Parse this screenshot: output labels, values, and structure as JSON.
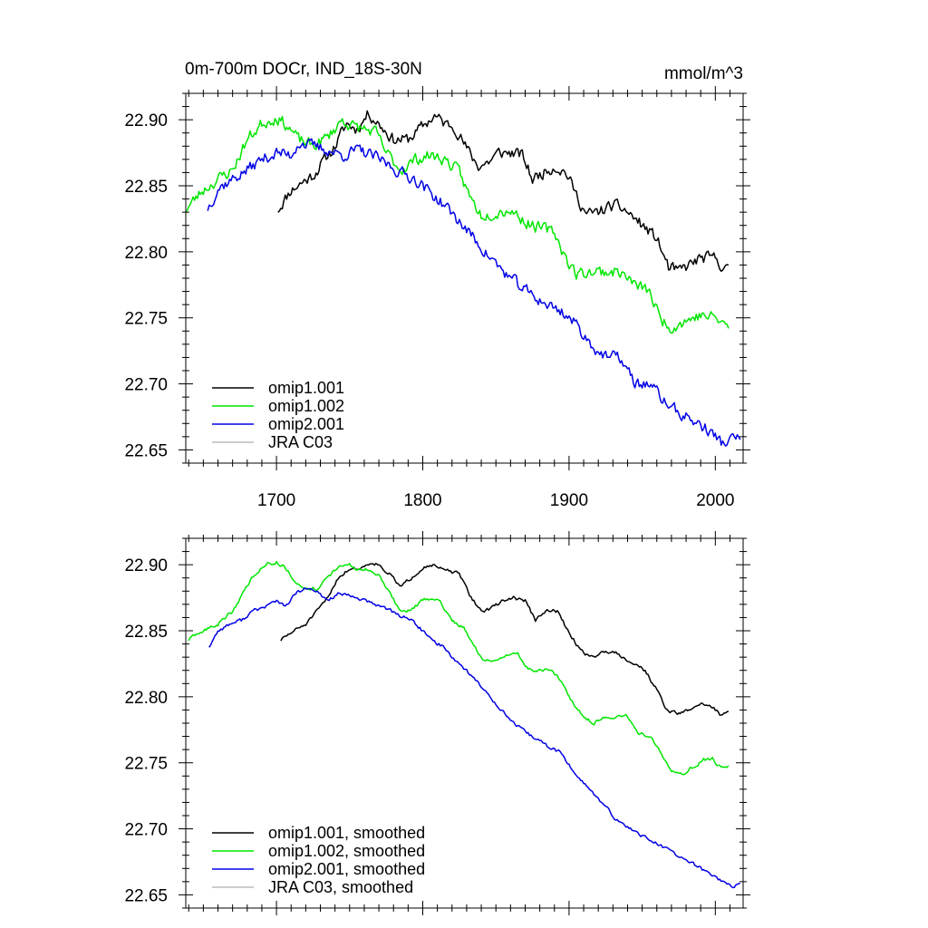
{
  "header": {
    "title": "0m-700m DOCr, IND_18S-30N",
    "units": "mmol/m^3"
  },
  "chart_data": [
    {
      "type": "line",
      "panel": "top",
      "title": "0m-700m DOCr, IND_18S-30N",
      "units_label": "mmol/m^3",
      "xlim": [
        1638,
        2019
      ],
      "ylim": [
        22.64,
        22.92
      ],
      "x_ticks": [
        1700,
        1800,
        1900,
        2000
      ],
      "x_tick_labels": [
        "1700",
        "1800",
        "1900",
        "2000"
      ],
      "y_ticks": [
        22.65,
        22.7,
        22.75,
        22.8,
        22.85,
        22.9
      ],
      "y_tick_labels": [
        "22.65",
        "22.70",
        "22.75",
        "22.80",
        "22.85",
        "22.90"
      ],
      "legend": {
        "position": "bottom-left",
        "entries": [
          "omip1.001",
          "omip1.002",
          "omip2.001",
          "JRA C03"
        ]
      },
      "series": [
        {
          "name": "omip1.001",
          "color": "#000000",
          "noise": 0.004,
          "seed": 11,
          "x": [
            1701,
            1710,
            1725,
            1740,
            1748,
            1755,
            1763,
            1770,
            1780,
            1790,
            1800,
            1808,
            1815,
            1822,
            1830,
            1838,
            1845,
            1852,
            1860,
            1868,
            1875,
            1882,
            1890,
            1898,
            1905,
            1912,
            1920,
            1930,
            1938,
            1945,
            1952,
            1960,
            1968,
            1975,
            1982,
            1990,
            2000,
            2009
          ],
          "values": [
            22.832,
            22.847,
            22.858,
            22.88,
            22.897,
            22.893,
            22.905,
            22.897,
            22.885,
            22.885,
            22.895,
            22.903,
            22.897,
            22.895,
            22.878,
            22.865,
            22.868,
            22.875,
            22.875,
            22.873,
            22.855,
            22.86,
            22.865,
            22.86,
            22.843,
            22.828,
            22.83,
            22.835,
            22.832,
            22.825,
            22.818,
            22.81,
            22.788,
            22.785,
            22.79,
            22.795,
            22.795,
            22.785
          ]
        },
        {
          "name": "omip1.002",
          "color": "#00e600",
          "noise": 0.004,
          "seed": 23,
          "x": [
            1638,
            1650,
            1660,
            1670,
            1680,
            1690,
            1700,
            1708,
            1715,
            1725,
            1735,
            1745,
            1752,
            1760,
            1768,
            1775,
            1785,
            1795,
            1805,
            1815,
            1825,
            1833,
            1840,
            1850,
            1860,
            1870,
            1880,
            1890,
            1898,
            1905,
            1915,
            1925,
            1935,
            1945,
            1955,
            1962,
            1970,
            1980,
            1990,
            2000,
            2009
          ],
          "values": [
            22.832,
            22.847,
            22.855,
            22.862,
            22.885,
            22.897,
            22.902,
            22.895,
            22.885,
            22.88,
            22.887,
            22.9,
            22.895,
            22.893,
            22.89,
            22.875,
            22.862,
            22.87,
            22.873,
            22.87,
            22.86,
            22.84,
            22.828,
            22.83,
            22.832,
            22.823,
            22.818,
            22.815,
            22.795,
            22.783,
            22.785,
            22.785,
            22.785,
            22.775,
            22.77,
            22.75,
            22.743,
            22.748,
            22.752,
            22.75,
            22.743
          ]
        },
        {
          "name": "omip2.001",
          "color": "#0000e6",
          "noise": 0.004,
          "seed": 37,
          "x": [
            1653,
            1660,
            1670,
            1680,
            1690,
            1700,
            1710,
            1715,
            1725,
            1735,
            1745,
            1755,
            1765,
            1775,
            1785,
            1795,
            1805,
            1815,
            1825,
            1835,
            1845,
            1855,
            1865,
            1875,
            1885,
            1895,
            1905,
            1915,
            1925,
            1935,
            1945,
            1955,
            1965,
            1975,
            1985,
            1995,
            2005,
            2017
          ],
          "values": [
            22.833,
            22.848,
            22.855,
            22.862,
            22.87,
            22.875,
            22.873,
            22.883,
            22.88,
            22.877,
            22.873,
            22.877,
            22.873,
            22.867,
            22.86,
            22.855,
            22.845,
            22.835,
            22.823,
            22.81,
            22.797,
            22.785,
            22.775,
            22.767,
            22.76,
            22.755,
            22.745,
            22.73,
            22.72,
            22.72,
            22.7,
            22.7,
            22.687,
            22.678,
            22.672,
            22.665,
            22.655,
            22.66
          ]
        },
        {
          "name": "JRA C03",
          "color": "#bbbbbb",
          "x": [],
          "values": []
        }
      ]
    },
    {
      "type": "line",
      "panel": "bottom",
      "xlim": [
        1638,
        2019
      ],
      "ylim": [
        22.64,
        22.92
      ],
      "x_ticks": [
        1700,
        1800,
        1900,
        2000
      ],
      "x_tick_labels": [],
      "y_ticks": [
        22.65,
        22.7,
        22.75,
        22.8,
        22.85,
        22.9
      ],
      "y_tick_labels": [
        "22.65",
        "22.70",
        "22.75",
        "22.80",
        "22.85",
        "22.90"
      ],
      "legend": {
        "position": "bottom-left",
        "entries": [
          "omip1.001, smoothed",
          "omip1.002, smoothed",
          "omip2.001, smoothed",
          "JRA C03, smoothed"
        ]
      },
      "series": [
        {
          "name": "omip1.001, smoothed",
          "color": "#000000",
          "noise": 0.0012,
          "seed": 51,
          "x": [
            1703,
            1712,
            1720,
            1728,
            1735,
            1742,
            1750,
            1757,
            1765,
            1770,
            1778,
            1785,
            1792,
            1800,
            1806,
            1812,
            1818,
            1825,
            1832,
            1840,
            1847,
            1855,
            1862,
            1870,
            1877,
            1885,
            1892,
            1900,
            1907,
            1914,
            1922,
            1930,
            1937,
            1945,
            1952,
            1960,
            1967,
            1975,
            1982,
            1990,
            1997,
            2003,
            2009
          ],
          "values": [
            22.843,
            22.85,
            22.855,
            22.865,
            22.875,
            22.89,
            22.897,
            22.897,
            22.902,
            22.9,
            22.892,
            22.883,
            22.89,
            22.898,
            22.9,
            22.897,
            22.895,
            22.893,
            22.877,
            22.865,
            22.867,
            22.873,
            22.875,
            22.873,
            22.858,
            22.865,
            22.865,
            22.848,
            22.837,
            22.83,
            22.833,
            22.835,
            22.83,
            22.825,
            22.82,
            22.805,
            22.79,
            22.787,
            22.79,
            22.795,
            22.793,
            22.787,
            22.789
          ]
        },
        {
          "name": "omip1.002, smoothed",
          "color": "#00e600",
          "noise": 0.0012,
          "seed": 63,
          "x": [
            1640,
            1650,
            1660,
            1670,
            1678,
            1685,
            1692,
            1700,
            1706,
            1712,
            1720,
            1728,
            1735,
            1742,
            1748,
            1755,
            1762,
            1770,
            1778,
            1785,
            1792,
            1800,
            1806,
            1812,
            1820,
            1828,
            1835,
            1842,
            1850,
            1857,
            1865,
            1872,
            1880,
            1887,
            1895,
            1903,
            1910,
            1917,
            1925,
            1932,
            1940,
            1948,
            1955,
            1962,
            1970,
            1978,
            1985,
            1992,
            1998,
            2004,
            2009
          ],
          "values": [
            22.843,
            22.85,
            22.855,
            22.865,
            22.88,
            22.893,
            22.9,
            22.902,
            22.898,
            22.888,
            22.882,
            22.882,
            22.89,
            22.898,
            22.901,
            22.897,
            22.896,
            22.892,
            22.877,
            22.865,
            22.865,
            22.873,
            22.875,
            22.872,
            22.857,
            22.853,
            22.838,
            22.827,
            22.828,
            22.832,
            22.832,
            22.821,
            22.82,
            22.82,
            22.812,
            22.795,
            22.785,
            22.78,
            22.785,
            22.785,
            22.785,
            22.772,
            22.77,
            22.76,
            22.745,
            22.742,
            22.747,
            22.752,
            22.753,
            22.746,
            22.747
          ]
        },
        {
          "name": "omip2.001, smoothed",
          "color": "#0000e6",
          "noise": 0.0012,
          "seed": 77,
          "x": [
            1654,
            1660,
            1668,
            1676,
            1684,
            1692,
            1700,
            1706,
            1713,
            1720,
            1728,
            1735,
            1742,
            1750,
            1758,
            1766,
            1774,
            1782,
            1790,
            1798,
            1806,
            1814,
            1822,
            1830,
            1838,
            1846,
            1854,
            1862,
            1870,
            1878,
            1886,
            1894,
            1902,
            1910,
            1918,
            1926,
            1934,
            1942,
            1950,
            1958,
            1966,
            1974,
            1982,
            1990,
            1998,
            2005,
            2011,
            2017
          ],
          "values": [
            22.838,
            22.85,
            22.855,
            22.858,
            22.865,
            22.868,
            22.873,
            22.868,
            22.878,
            22.882,
            22.879,
            22.873,
            22.878,
            22.876,
            22.874,
            22.87,
            22.868,
            22.862,
            22.86,
            22.852,
            22.843,
            22.838,
            22.828,
            22.82,
            22.81,
            22.8,
            22.79,
            22.78,
            22.773,
            22.768,
            22.762,
            22.758,
            22.745,
            22.735,
            22.725,
            22.715,
            22.705,
            22.7,
            22.695,
            22.69,
            22.685,
            22.68,
            22.675,
            22.67,
            22.665,
            22.66,
            22.657,
            22.657
          ]
        },
        {
          "name": "JRA C03, smoothed",
          "color": "#bbbbbb",
          "x": [],
          "values": []
        }
      ]
    }
  ]
}
